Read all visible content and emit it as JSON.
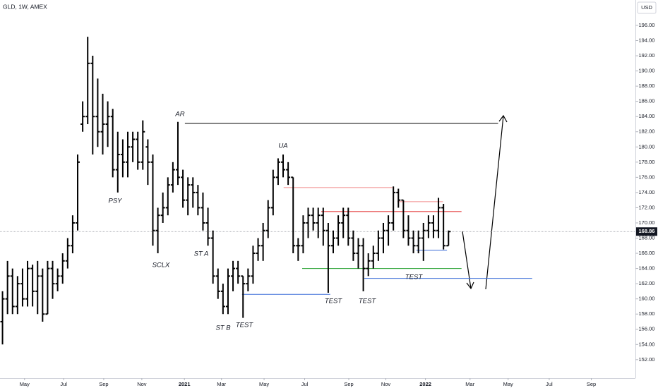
{
  "chart_data": {
    "type": "ohlc",
    "title": "GLD, 1W, AMEX",
    "currency": "USD",
    "color": "#000000",
    "x": [
      0,
      1,
      2,
      3,
      4,
      5,
      6,
      7,
      8,
      9,
      10,
      11,
      12,
      13,
      14,
      15,
      16,
      17,
      18,
      19,
      20,
      21,
      22,
      23,
      24,
      25,
      26,
      27,
      28,
      29,
      30,
      31,
      32,
      33,
      34,
      35,
      36,
      37,
      38,
      39,
      40,
      41,
      42,
      43,
      44,
      45,
      46,
      47,
      48,
      49,
      50,
      51,
      52,
      53,
      54,
      55,
      56,
      57,
      58,
      59,
      60,
      61,
      62,
      63,
      64,
      65,
      66,
      67,
      68,
      69,
      70,
      71,
      72,
      73,
      74,
      75,
      76,
      77,
      78,
      79,
      80,
      81,
      82,
      83,
      84,
      85,
      86,
      87,
      88,
      89
    ],
    "open": [
      157,
      160,
      163,
      159,
      162,
      160,
      164,
      161,
      163,
      158,
      164,
      162,
      163,
      165,
      167,
      170,
      183,
      184,
      191,
      184,
      182,
      183,
      184,
      177,
      179,
      178,
      180,
      181,
      178,
      180,
      178,
      169,
      171,
      172,
      175,
      177,
      176,
      173,
      175,
      174,
      172,
      170,
      168,
      163,
      161,
      159,
      163,
      164,
      163,
      162,
      163,
      166,
      167,
      169,
      172,
      176,
      178,
      177,
      176,
      167,
      167,
      170,
      171,
      170,
      171,
      169,
      167,
      168,
      170,
      171,
      168,
      166,
      167,
      164,
      165,
      166,
      168,
      169,
      170,
      174,
      173,
      169,
      168,
      167,
      168,
      169,
      170,
      169,
      172,
      167
    ],
    "high": [
      161,
      165,
      164,
      163,
      164,
      165,
      164.5,
      165,
      164,
      165,
      165,
      164,
      166,
      168,
      171,
      179,
      186,
      194.5,
      192,
      189,
      187,
      186,
      185,
      182,
      181,
      182,
      182,
      182,
      183.5,
      181,
      179,
      172,
      174,
      176,
      178,
      183.3,
      177,
      176,
      176,
      175,
      174,
      172,
      169,
      164,
      162,
      164,
      165,
      165,
      163,
      164,
      167,
      168,
      170,
      173,
      177,
      178.5,
      179,
      178,
      176,
      168,
      171,
      172,
      172,
      172,
      172,
      170,
      169,
      171,
      172,
      172,
      169,
      168,
      168,
      166,
      167,
      169,
      170,
      171,
      174.8,
      174.5,
      173,
      171,
      169,
      169,
      170,
      171,
      171,
      173.3,
      172.5,
      169
    ],
    "low": [
      154,
      158,
      158,
      158,
      159,
      159,
      159,
      158,
      157,
      158,
      160,
      161,
      162,
      164,
      166,
      169,
      182,
      183,
      179,
      180,
      179,
      180,
      176,
      174,
      176,
      176,
      178,
      177,
      177,
      175,
      167,
      166,
      170,
      171,
      174,
      175,
      172,
      171,
      172,
      171,
      169,
      167,
      162,
      160,
      158,
      158,
      161,
      162,
      157.5,
      161,
      162,
      165,
      165,
      168,
      171,
      175,
      176,
      175,
      166,
      165,
      166,
      168,
      169,
      168,
      167,
      160.8,
      166,
      167,
      168,
      167,
      165,
      164,
      161,
      163,
      164,
      165,
      166,
      167,
      169,
      172,
      168,
      167,
      166,
      166,
      165,
      168,
      168,
      168,
      166.5,
      167
    ],
    "close": [
      160,
      163,
      159,
      162,
      160,
      164,
      161,
      163,
      158,
      164,
      162,
      163,
      165,
      167,
      170,
      178,
      184,
      191,
      184,
      182,
      183,
      184,
      177,
      179,
      178,
      180,
      181,
      178,
      182,
      178,
      169,
      171,
      172,
      175,
      177,
      176,
      173,
      175,
      174,
      172,
      170,
      168,
      163,
      161,
      159,
      163,
      164,
      163,
      162,
      163,
      166,
      167,
      169,
      172,
      176,
      178,
      177,
      176,
      167,
      167,
      170,
      171,
      170,
      171,
      169,
      167,
      168,
      170,
      171,
      168,
      166,
      167,
      164,
      165,
      166,
      168,
      169,
      170,
      174,
      173,
      169,
      168,
      167,
      168,
      169,
      170,
      169,
      172,
      167,
      168.86
    ],
    "last_price": 168.86,
    "xlim": [
      -0.5,
      126.3
    ],
    "xticks": [
      {
        "value": 4.4,
        "label": "May"
      },
      {
        "value": 12.2,
        "label": "Jul"
      },
      {
        "value": 20.2,
        "label": "Sep"
      },
      {
        "value": 27.8,
        "label": "Nov"
      },
      {
        "value": 36.3,
        "label": "2021"
      },
      {
        "value": 43.7,
        "label": "Mar"
      },
      {
        "value": 52.2,
        "label": "May"
      },
      {
        "value": 60.3,
        "label": "Jul"
      },
      {
        "value": 69.1,
        "label": "Sep"
      },
      {
        "value": 76.5,
        "label": "Nov"
      },
      {
        "value": 84.4,
        "label": "2022"
      },
      {
        "value": 93.3,
        "label": "Mar"
      },
      {
        "value": 100.9,
        "label": "May"
      },
      {
        "value": 109.1,
        "label": "Jul"
      },
      {
        "value": 117.5,
        "label": "Sep"
      }
    ],
    "ylim": [
      149.57,
      199.34
    ],
    "yticks": [
      {
        "value": 152,
        "label": "152.00"
      },
      {
        "value": 154,
        "label": "154.00"
      },
      {
        "value": 156,
        "label": "156.00"
      },
      {
        "value": 158,
        "label": "158.00"
      },
      {
        "value": 160,
        "label": "160.00"
      },
      {
        "value": 162,
        "label": "162.00"
      },
      {
        "value": 164,
        "label": "164.00"
      },
      {
        "value": 166,
        "label": "166.00"
      },
      {
        "value": 168,
        "label": "168.00"
      },
      {
        "value": 170,
        "label": "170.00"
      },
      {
        "value": 172,
        "label": "172.00"
      },
      {
        "value": 174,
        "label": "174.00"
      },
      {
        "value": 176,
        "label": "176.00"
      },
      {
        "value": 178,
        "label": "178.00"
      },
      {
        "value": 180,
        "label": "180.00"
      },
      {
        "value": 182,
        "label": "182.00"
      },
      {
        "value": 184,
        "label": "184.00"
      },
      {
        "value": 186,
        "label": "186.00"
      },
      {
        "value": 188,
        "label": "188.00"
      },
      {
        "value": 190,
        "label": "190.00"
      },
      {
        "value": 192,
        "label": "192.00"
      },
      {
        "value": 194,
        "label": "194.00"
      },
      {
        "value": 196,
        "label": "196.00"
      }
    ],
    "levels": [
      {
        "price": 183.1,
        "from": 36.4,
        "to": 98.9,
        "color": "#000000"
      },
      {
        "price": 174.65,
        "from": 56.1,
        "to": 77.8,
        "color": "#f08a8a"
      },
      {
        "price": 172.8,
        "from": 78.8,
        "to": 87.9,
        "color": "#f08a8a"
      },
      {
        "price": 171.5,
        "from": 63.6,
        "to": 91.6,
        "color": "#e01e1e"
      },
      {
        "price": 166.4,
        "from": 82.6,
        "to": 88.7,
        "color": "#3d6fd8"
      },
      {
        "price": 164,
        "from": 59.8,
        "to": 91.6,
        "color": "#1f9e2a"
      },
      {
        "price": 162.7,
        "from": 72.2,
        "to": 105.7,
        "color": "#3d6fd8"
      },
      {
        "price": 160.6,
        "from": 47.8,
        "to": 65.4,
        "color": "#3d6fd8"
      }
    ],
    "annotations": [
      "PSY",
      "SCLX",
      "ST A",
      "ST B",
      "TEST",
      "AR",
      "UA",
      "TEST",
      "TEST",
      "TEST"
    ]
  }
}
